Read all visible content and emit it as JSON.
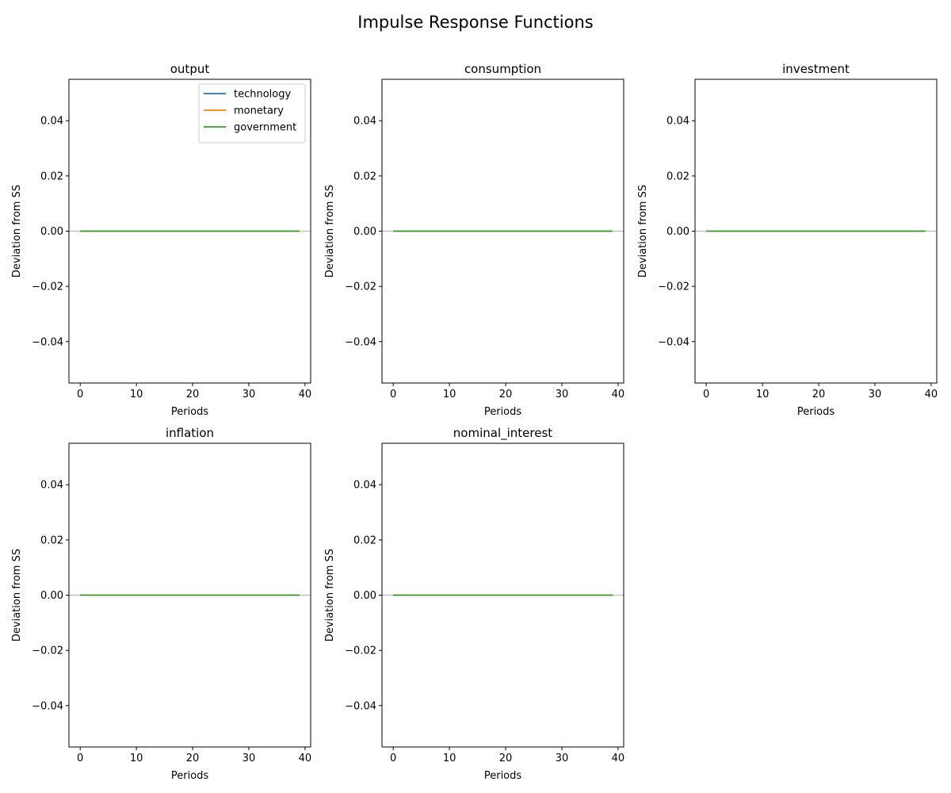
{
  "figure": {
    "title": "Impulse Response Functions"
  },
  "colors": {
    "technology": "#1f77b4",
    "monetary": "#ff7f0e",
    "government": "#2ca02c",
    "zero_line": "#bbbbbb",
    "axes": "#000000"
  },
  "chart_data": [
    {
      "type": "line",
      "title": "output",
      "xlabel": "Periods",
      "ylabel": "Deviation from SS",
      "xlim": [
        -2,
        41
      ],
      "ylim": [
        -0.055,
        0.055
      ],
      "xticks": [
        0,
        10,
        20,
        30,
        40
      ],
      "xtick_labels": [
        "0",
        "10",
        "20",
        "30",
        "40"
      ],
      "yticks": [
        -0.04,
        -0.02,
        0.0,
        0.02,
        0.04
      ],
      "ytick_labels": [
        "−0.04",
        "−0.02",
        "0.00",
        "0.02",
        "0.04"
      ],
      "legend": {
        "placement": "upper-right",
        "entries": [
          "technology",
          "monetary",
          "government"
        ]
      },
      "reference_line": 0,
      "series": [
        {
          "name": "technology",
          "x": [
            0,
            39
          ],
          "y": [
            0.0,
            0.0
          ]
        },
        {
          "name": "monetary",
          "x": [
            0,
            39
          ],
          "y": [
            0.0,
            0.0
          ]
        },
        {
          "name": "government",
          "x": [
            0,
            39
          ],
          "y": [
            0.0,
            0.0
          ]
        }
      ]
    },
    {
      "type": "line",
      "title": "consumption",
      "xlabel": "Periods",
      "ylabel": "Deviation from SS",
      "xlim": [
        -2,
        41
      ],
      "ylim": [
        -0.055,
        0.055
      ],
      "xticks": [
        0,
        10,
        20,
        30,
        40
      ],
      "xtick_labels": [
        "0",
        "10",
        "20",
        "30",
        "40"
      ],
      "yticks": [
        -0.04,
        -0.02,
        0.0,
        0.02,
        0.04
      ],
      "ytick_labels": [
        "−0.04",
        "−0.02",
        "0.00",
        "0.02",
        "0.04"
      ],
      "reference_line": 0,
      "series": [
        {
          "name": "technology",
          "x": [
            0,
            39
          ],
          "y": [
            0.0,
            0.0
          ]
        },
        {
          "name": "monetary",
          "x": [
            0,
            39
          ],
          "y": [
            0.0,
            0.0
          ]
        },
        {
          "name": "government",
          "x": [
            0,
            39
          ],
          "y": [
            0.0,
            0.0
          ]
        }
      ]
    },
    {
      "type": "line",
      "title": "investment",
      "xlabel": "Periods",
      "ylabel": "Deviation from SS",
      "xlim": [
        -2,
        41
      ],
      "ylim": [
        -0.055,
        0.055
      ],
      "xticks": [
        0,
        10,
        20,
        30,
        40
      ],
      "xtick_labels": [
        "0",
        "10",
        "20",
        "30",
        "40"
      ],
      "yticks": [
        -0.04,
        -0.02,
        0.0,
        0.02,
        0.04
      ],
      "ytick_labels": [
        "−0.04",
        "−0.02",
        "0.00",
        "0.02",
        "0.04"
      ],
      "reference_line": 0,
      "series": [
        {
          "name": "technology",
          "x": [
            0,
            39
          ],
          "y": [
            0.0,
            0.0
          ]
        },
        {
          "name": "monetary",
          "x": [
            0,
            39
          ],
          "y": [
            0.0,
            0.0
          ]
        },
        {
          "name": "government",
          "x": [
            0,
            39
          ],
          "y": [
            0.0,
            0.0
          ]
        }
      ]
    },
    {
      "type": "line",
      "title": "inflation",
      "xlabel": "Periods",
      "ylabel": "Deviation from SS",
      "xlim": [
        -2,
        41
      ],
      "ylim": [
        -0.055,
        0.055
      ],
      "xticks": [
        0,
        10,
        20,
        30,
        40
      ],
      "xtick_labels": [
        "0",
        "10",
        "20",
        "30",
        "40"
      ],
      "yticks": [
        -0.04,
        -0.02,
        0.0,
        0.02,
        0.04
      ],
      "ytick_labels": [
        "−0.04",
        "−0.02",
        "0.00",
        "0.02",
        "0.04"
      ],
      "reference_line": 0,
      "series": [
        {
          "name": "technology",
          "x": [
            0,
            39
          ],
          "y": [
            0.0,
            0.0
          ]
        },
        {
          "name": "monetary",
          "x": [
            0,
            39
          ],
          "y": [
            0.0,
            0.0
          ]
        },
        {
          "name": "government",
          "x": [
            0,
            39
          ],
          "y": [
            0.0,
            0.0
          ]
        }
      ]
    },
    {
      "type": "line",
      "title": "nominal_interest",
      "xlabel": "Periods",
      "ylabel": "Deviation from SS",
      "xlim": [
        -2,
        41
      ],
      "ylim": [
        -0.055,
        0.055
      ],
      "xticks": [
        0,
        10,
        20,
        30,
        40
      ],
      "xtick_labels": [
        "0",
        "10",
        "20",
        "30",
        "40"
      ],
      "yticks": [
        -0.04,
        -0.02,
        0.0,
        0.02,
        0.04
      ],
      "ytick_labels": [
        "−0.04",
        "−0.02",
        "0.00",
        "0.02",
        "0.04"
      ],
      "reference_line": 0,
      "series": [
        {
          "name": "technology",
          "x": [
            0,
            39
          ],
          "y": [
            0.0,
            0.0
          ]
        },
        {
          "name": "monetary",
          "x": [
            0,
            39
          ],
          "y": [
            0.0,
            0.0
          ]
        },
        {
          "name": "government",
          "x": [
            0,
            39
          ],
          "y": [
            0.0,
            0.0
          ]
        }
      ]
    }
  ]
}
